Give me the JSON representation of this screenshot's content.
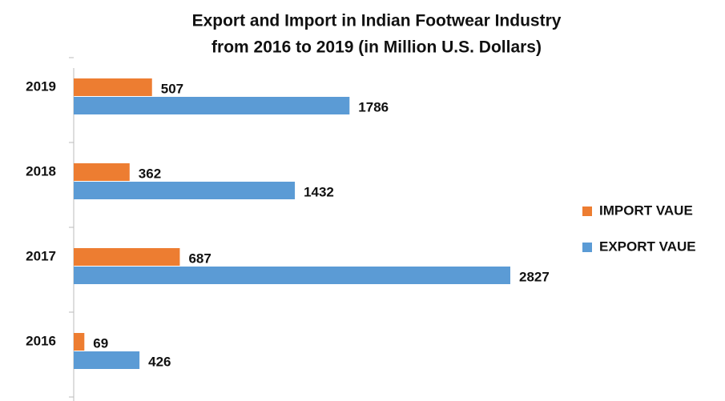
{
  "chart_data": {
    "type": "barh",
    "title": [
      "Export and Import in Indian Footwear Industry",
      "from 2016 to 2019 (in Million U.S. Dollars)"
    ],
    "categories": [
      "2016",
      "2017",
      "2018",
      "2019"
    ],
    "series": [
      {
        "name": "IMPORT VAUE",
        "color": "#ed7d31",
        "values": [
          69,
          687,
          362,
          507
        ]
      },
      {
        "name": "EXPORT VAUE",
        "color": "#5b9bd5",
        "values": [
          426,
          2827,
          1432,
          1786
        ]
      }
    ],
    "legend": "right"
  }
}
